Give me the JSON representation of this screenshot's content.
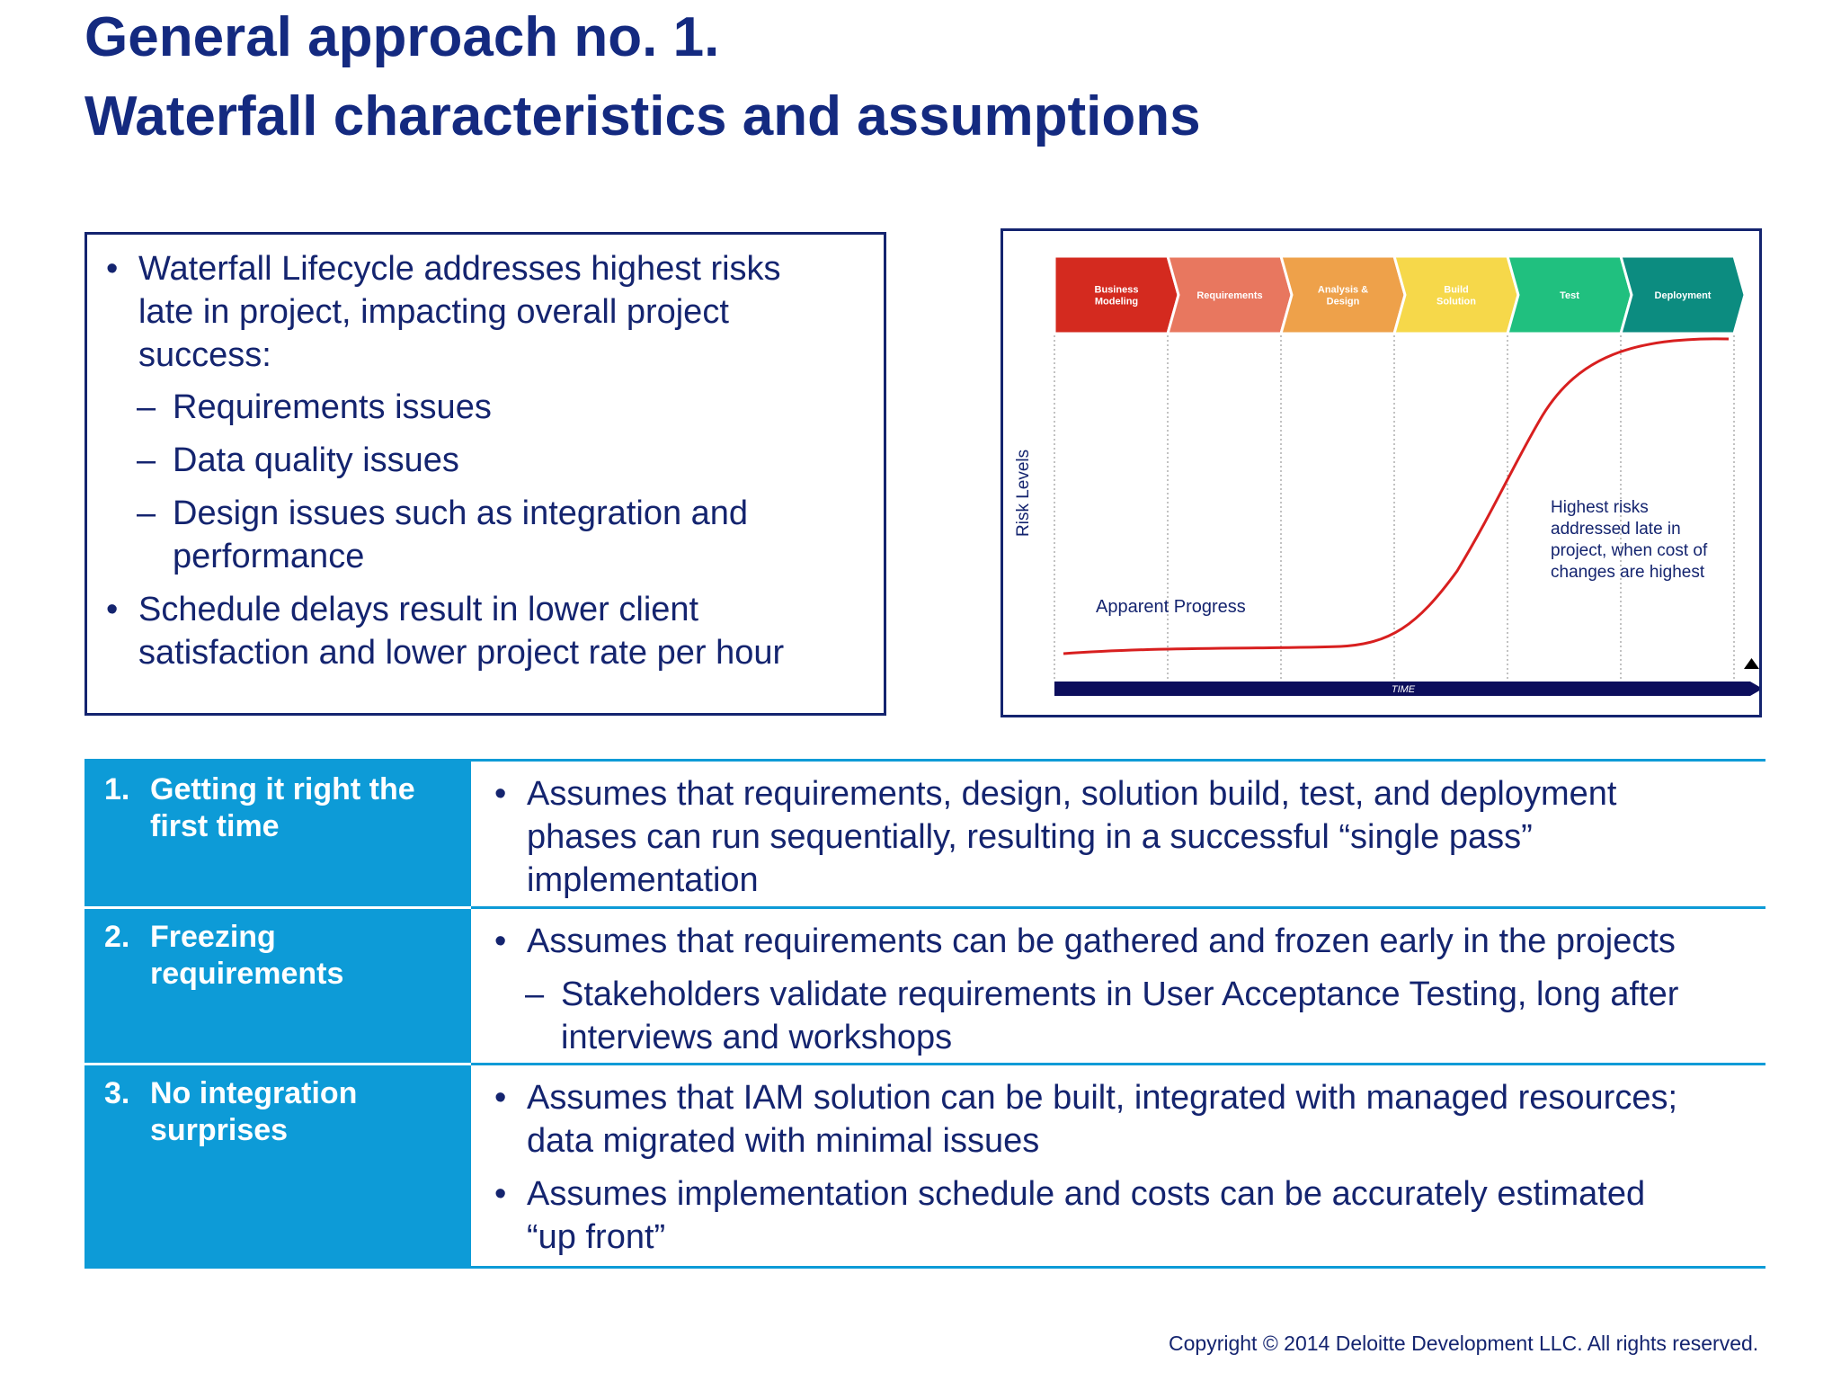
{
  "title": {
    "line1": "General approach no. 1.",
    "line2": "Waterfall characteristics and assumptions"
  },
  "risk_box": {
    "bullet1": [
      "Waterfall Lifecycle addresses highest risks",
      "late in project, impacting overall project",
      "success:"
    ],
    "sub_items": [
      "Requirements issues",
      "Data quality issues",
      "Design issues such as integration and",
      "performance"
    ],
    "bullet2": [
      "Schedule delays result in lower client",
      "satisfaction and lower project rate per hour"
    ]
  },
  "diagram": {
    "phases": [
      {
        "lines": [
          "Business",
          "Modeling"
        ],
        "color": "#d42a1f"
      },
      {
        "lines": [
          "Requirements"
        ],
        "color": "#e8775f"
      },
      {
        "lines": [
          "Analysis &",
          "Design"
        ],
        "color": "#eea14a"
      },
      {
        "lines": [
          "Build",
          "Solution"
        ],
        "color": "#f6d84a"
      },
      {
        "lines": [
          "Test"
        ],
        "color": "#20c07f"
      },
      {
        "lines": [
          "Deployment"
        ],
        "color": "#0c8c80"
      }
    ],
    "y_axis_label": "Risk Levels",
    "time_label": "TIME",
    "apparent_progress": "Apparent Progress",
    "risk_note": [
      "Highest risks",
      "addressed late in",
      "project, when cost of",
      "changes are highest"
    ],
    "curve_color": "#d81f1f"
  },
  "table": {
    "rows": [
      {
        "number": "1.",
        "label": [
          "Getting it right the",
          "first time"
        ],
        "bullets": [
          [
            "Assumes that requirements, design, solution build, test, and deployment",
            "phases can run sequentially, resulting in a successful “single pass”",
            "implementation"
          ]
        ]
      },
      {
        "number": "2.",
        "label": [
          "Freezing",
          "requirements"
        ],
        "bullets": [
          [
            "Assumes that requirements can be gathered and frozen early in the projects"
          ]
        ],
        "sub": [
          "Stakeholders validate requirements in User Acceptance Testing, long after",
          "interviews and workshops"
        ]
      },
      {
        "number": "3.",
        "label": [
          "No integration",
          "surprises"
        ],
        "bullets": [
          [
            "Assumes that IAM solution can be built, integrated with managed resources;",
            "data migrated with minimal issues"
          ],
          [
            "Assumes implementation schedule and costs can be accurately estimated",
            "“up front”"
          ]
        ]
      }
    ]
  },
  "copyright": "Copyright © 2014 Deloitte Development LLC. All rights reserved."
}
